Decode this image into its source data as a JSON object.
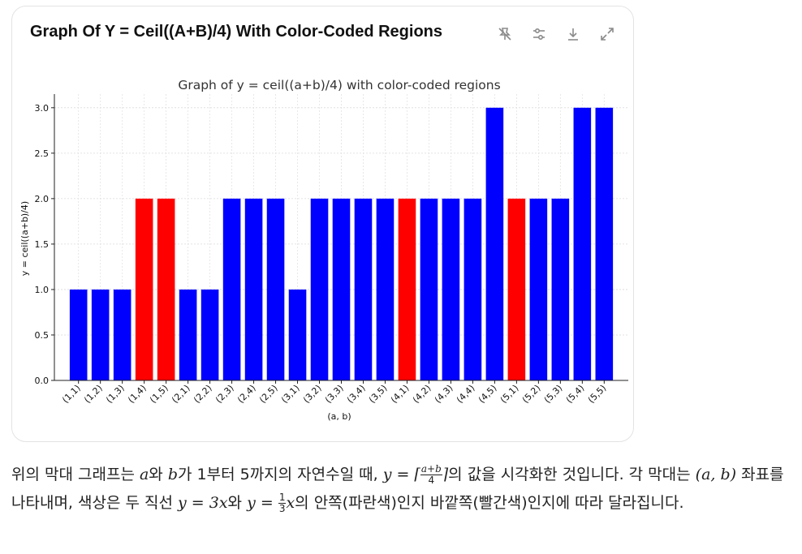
{
  "card": {
    "title": "Graph Of Y = Ceil((A+B)/4) With Color-Coded Regions",
    "tools": [
      "pin-off-icon",
      "sliders-icon",
      "download-icon",
      "expand-icon"
    ]
  },
  "chart_data": {
    "type": "bar",
    "title": "Graph of y = ceil((a+b)/4) with color-coded regions",
    "xlabel": "(a, b)",
    "ylabel": "y = ceil((a+b)/4)",
    "ylim": [
      0,
      3.15
    ],
    "yticks": [
      "0.0",
      "0.5",
      "1.0",
      "1.5",
      "2.0",
      "2.5",
      "3.0"
    ],
    "grid": true,
    "categories": [
      "(1,1)",
      "(1,2)",
      "(1,3)",
      "(1,4)",
      "(1,5)",
      "(2,1)",
      "(2,2)",
      "(2,3)",
      "(2,4)",
      "(2,5)",
      "(3,1)",
      "(3,2)",
      "(3,3)",
      "(3,4)",
      "(3,5)",
      "(4,1)",
      "(4,2)",
      "(4,3)",
      "(4,4)",
      "(4,5)",
      "(5,1)",
      "(5,2)",
      "(5,3)",
      "(5,4)",
      "(5,5)"
    ],
    "values": [
      1,
      1,
      1,
      2,
      2,
      1,
      1,
      2,
      2,
      2,
      1,
      2,
      2,
      2,
      2,
      2,
      2,
      2,
      2,
      3,
      2,
      2,
      2,
      3,
      3
    ],
    "colors": [
      "blue",
      "blue",
      "blue",
      "red",
      "red",
      "blue",
      "blue",
      "blue",
      "blue",
      "blue",
      "blue",
      "blue",
      "blue",
      "blue",
      "blue",
      "red",
      "blue",
      "blue",
      "blue",
      "blue",
      "red",
      "blue",
      "blue",
      "blue",
      "blue"
    ],
    "color_hex": {
      "blue": "#0000ff",
      "red": "#ff0000"
    }
  },
  "caption": {
    "p1": "위의 막대 그래프는 ",
    "a": "a",
    "p2": "와 ",
    "b": "b",
    "p3": "가 1부터 5까지의 자연수일 때, ",
    "eq_lhs": "y = ⌈",
    "frac_num": "a+b",
    "frac_den": "4",
    "eq_rhs": "⌉",
    "p4": "의 값을 시각화한 것입니다. 각 막대는 ",
    "ab": "(a, b)",
    "p5": " 좌표를 나타내며, 색상은 두 직선 ",
    "line1": "y = 3x",
    "p6": "와 ",
    "line2_lhs": "y = ",
    "line2_num": "1",
    "line2_den": "3",
    "line2_x": "x",
    "p7": "의 안쪽(파란색)인지 바깥쪽(빨간색)인지에 따라 달라집니다."
  }
}
